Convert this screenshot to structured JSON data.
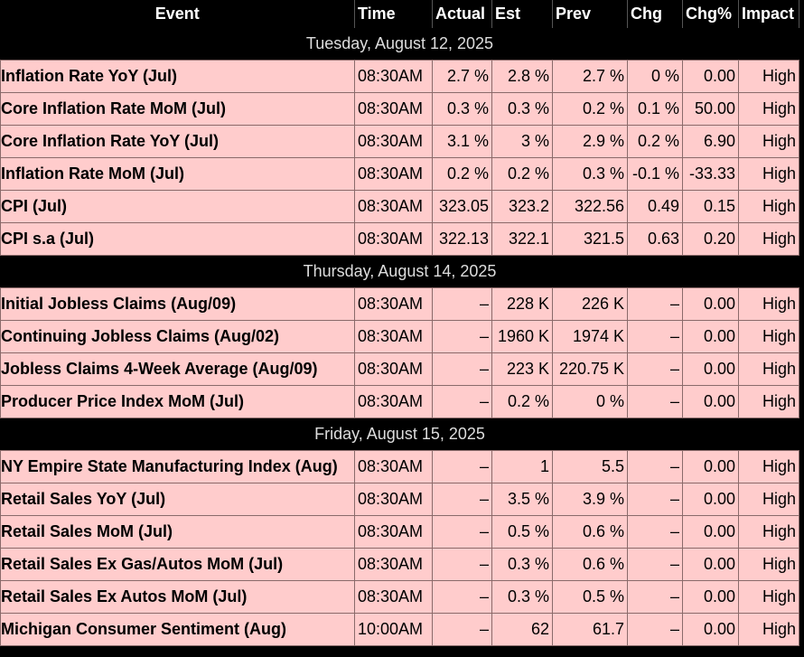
{
  "headers": {
    "event": "Event",
    "time": "Time",
    "actual": "Actual",
    "est": "Est",
    "prev": "Prev",
    "chg": "Chg",
    "chg_pct": "Chg%",
    "impact": "Impact"
  },
  "days": [
    {
      "date": "Tuesday, August 12, 2025",
      "events": [
        {
          "event": "Inflation Rate YoY (Jul)",
          "time": "08:30AM",
          "actual": "2.7 %",
          "est": "2.8 %",
          "prev": "2.7 %",
          "chg": "0 %",
          "chg_pct": "0.00",
          "impact": "High"
        },
        {
          "event": "Core Inflation Rate MoM (Jul)",
          "time": "08:30AM",
          "actual": "0.3 %",
          "est": "0.3 %",
          "prev": "0.2 %",
          "chg": "0.1 %",
          "chg_pct": "50.00",
          "impact": "High"
        },
        {
          "event": "Core Inflation Rate YoY (Jul)",
          "time": "08:30AM",
          "actual": "3.1 %",
          "est": "3 %",
          "prev": "2.9 %",
          "chg": "0.2 %",
          "chg_pct": "6.90",
          "impact": "High"
        },
        {
          "event": "Inflation Rate MoM (Jul)",
          "time": "08:30AM",
          "actual": "0.2 %",
          "est": "0.2 %",
          "prev": "0.3 %",
          "chg": "-0.1 %",
          "chg_pct": "-33.33",
          "impact": "High"
        },
        {
          "event": "CPI (Jul)",
          "time": "08:30AM",
          "actual": "323.05",
          "est": "323.2",
          "prev": "322.56",
          "chg": "0.49",
          "chg_pct": "0.15",
          "impact": "High"
        },
        {
          "event": "CPI s.a (Jul)",
          "time": "08:30AM",
          "actual": "322.13",
          "est": "322.1",
          "prev": "321.5",
          "chg": "0.63",
          "chg_pct": "0.20",
          "impact": "High"
        }
      ]
    },
    {
      "date": "Thursday, August 14, 2025",
      "events": [
        {
          "event": "Initial Jobless Claims (Aug/09)",
          "time": "08:30AM",
          "actual": "–",
          "est": "228 K",
          "prev": "226 K",
          "chg": "–",
          "chg_pct": "0.00",
          "impact": "High"
        },
        {
          "event": "Continuing Jobless Claims (Aug/02)",
          "time": "08:30AM",
          "actual": "–",
          "est": "1960 K",
          "prev": "1974 K",
          "chg": "–",
          "chg_pct": "0.00",
          "impact": "High"
        },
        {
          "event": "Jobless Claims 4-Week Average (Aug/09)",
          "time": "08:30AM",
          "actual": "–",
          "est": "223 K",
          "prev": "220.75 K",
          "chg": "–",
          "chg_pct": "0.00",
          "impact": "High"
        },
        {
          "event": "Producer Price Index MoM (Jul)",
          "time": "08:30AM",
          "actual": "–",
          "est": "0.2 %",
          "prev": "0 %",
          "chg": "–",
          "chg_pct": "0.00",
          "impact": "High"
        }
      ]
    },
    {
      "date": "Friday, August 15, 2025",
      "events": [
        {
          "event": "NY Empire State Manufacturing Index (Aug)",
          "time": "08:30AM",
          "actual": "–",
          "est": "1",
          "prev": "5.5",
          "chg": "–",
          "chg_pct": "0.00",
          "impact": "High"
        },
        {
          "event": "Retail Sales YoY (Jul)",
          "time": "08:30AM",
          "actual": "–",
          "est": "3.5 %",
          "prev": "3.9 %",
          "chg": "–",
          "chg_pct": "0.00",
          "impact": "High"
        },
        {
          "event": "Retail Sales MoM (Jul)",
          "time": "08:30AM",
          "actual": "–",
          "est": "0.5 %",
          "prev": "0.6 %",
          "chg": "–",
          "chg_pct": "0.00",
          "impact": "High"
        },
        {
          "event": "Retail Sales Ex Gas/Autos MoM (Jul)",
          "time": "08:30AM",
          "actual": "–",
          "est": "0.3 %",
          "prev": "0.6 %",
          "chg": "–",
          "chg_pct": "0.00",
          "impact": "High"
        },
        {
          "event": "Retail Sales Ex Autos MoM (Jul)",
          "time": "08:30AM",
          "actual": "–",
          "est": "0.3 %",
          "prev": "0.5 %",
          "chg": "–",
          "chg_pct": "0.00",
          "impact": "High"
        },
        {
          "event": "Michigan Consumer Sentiment (Aug)",
          "time": "10:00AM",
          "actual": "–",
          "est": "62",
          "prev": "61.7",
          "chg": "–",
          "chg_pct": "0.00",
          "impact": "High"
        }
      ]
    }
  ]
}
